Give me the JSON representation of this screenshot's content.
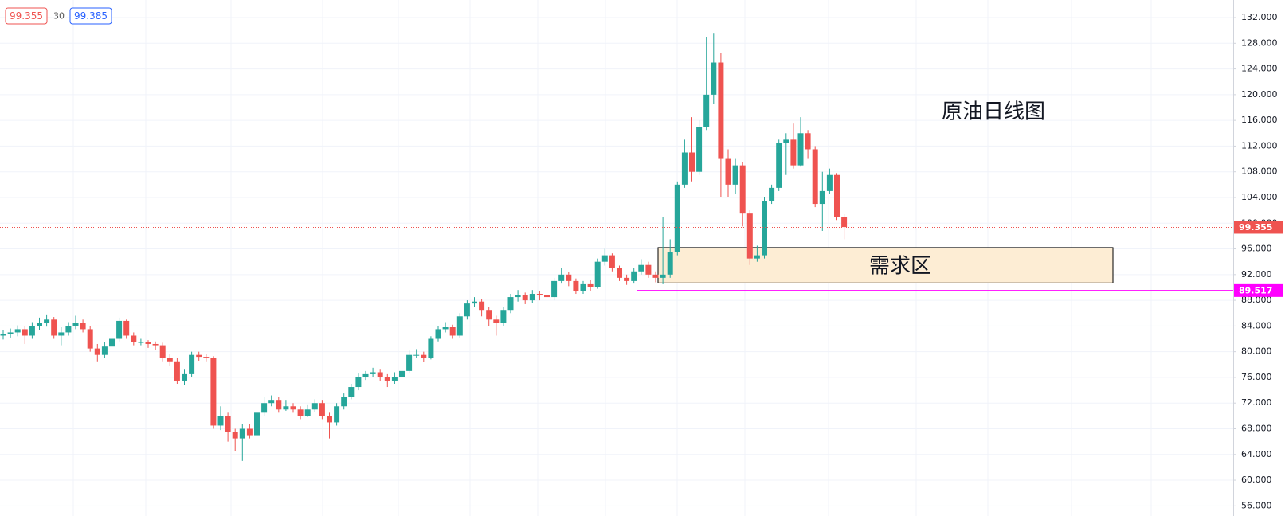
{
  "chart_data": {
    "type": "candlestick",
    "quote": {
      "bid": 99.355,
      "spread": 30,
      "ask": 99.385
    },
    "annotation": "原油日线图",
    "zone": {
      "label": "需求区",
      "range": [
        90.7,
        96.2
      ],
      "fill": "#fdedd4"
    },
    "last_price": {
      "value": 99.355,
      "color": "#ef5350"
    },
    "level": {
      "value": 89.517,
      "color": "#ff00ff"
    },
    "up_color": "#26a69a",
    "down_color": "#ef5350",
    "ylim": [
      54.43,
      134.73
    ],
    "yticks": [
      {
        "value": 56,
        "label": "56.000"
      },
      {
        "value": 60,
        "label": "60.000"
      },
      {
        "value": 64,
        "label": "64.000"
      },
      {
        "value": 68,
        "label": "68.000"
      },
      {
        "value": 72,
        "label": "72.000"
      },
      {
        "value": 76,
        "label": "76.000"
      },
      {
        "value": 80,
        "label": "80.000"
      },
      {
        "value": 84,
        "label": "84.000"
      },
      {
        "value": 88,
        "label": "88.000"
      },
      {
        "value": 92,
        "label": "92.000"
      },
      {
        "value": 96,
        "label": "96.000"
      },
      {
        "value": 100,
        "label": "100.000"
      },
      {
        "value": 104,
        "label": "104.000"
      },
      {
        "value": 108,
        "label": "108.000"
      },
      {
        "value": 112,
        "label": "112.000"
      },
      {
        "value": 116,
        "label": "116.000"
      },
      {
        "value": 120,
        "label": "120.000"
      },
      {
        "value": 124,
        "label": "124.000"
      },
      {
        "value": 128,
        "label": "128.000"
      },
      {
        "value": 132,
        "label": "132.000"
      }
    ],
    "grid": true,
    "series": [
      {
        "open": [
          82.5,
          82.8,
          83,
          83.5,
          82.5,
          84,
          84.5,
          85,
          82.5,
          83,
          84,
          84.5,
          83.5,
          80.5,
          79.5,
          80.8,
          82,
          84.8,
          82.5,
          81.5,
          81.5,
          81.2,
          81,
          79,
          78.5,
          75.5,
          76.5,
          79.5,
          79.2,
          79,
          68.5,
          70,
          67.5,
          66.5,
          68,
          67,
          70.5,
          72,
          72.5,
          71,
          71.5,
          71,
          70,
          71,
          72,
          70,
          69,
          71.5,
          73,
          74.5,
          76,
          76.5,
          76.8,
          76,
          75.5,
          76,
          77,
          79.5,
          79.5,
          79,
          82,
          83.5,
          83.8,
          82.5,
          85.5,
          87.5,
          87.8,
          86.5,
          85,
          84.5,
          86.5,
          88.5,
          88.8,
          88,
          89,
          88.8,
          88.5,
          91,
          92,
          91,
          89.5,
          90.5,
          90,
          94,
          95,
          93,
          91.5,
          91,
          92.5,
          93.5,
          92,
          91.5,
          92,
          95.5,
          106,
          111,
          108,
          115,
          120,
          125,
          110,
          106,
          109,
          101.5,
          94.5,
          95,
          103.5,
          105.5,
          112.5,
          113,
          109,
          114,
          111.5,
          103,
          105,
          107.5,
          101
        ],
        "high": [
          83.3,
          83.6,
          84.1,
          84,
          84.6,
          85.3,
          85.8,
          85.4,
          83.8,
          84.6,
          85.6,
          85,
          84,
          81.2,
          81.5,
          82.6,
          85.3,
          85,
          83,
          82,
          81.8,
          81.6,
          81.4,
          79.6,
          79,
          77.2,
          80,
          80,
          79.6,
          79.3,
          71.5,
          70.5,
          68,
          68.8,
          68.8,
          71,
          73,
          73.2,
          73,
          72.5,
          72,
          71.5,
          71.8,
          72.6,
          72.5,
          70.5,
          72,
          73.5,
          75,
          76.6,
          77,
          77.5,
          77.2,
          76.5,
          76.8,
          77.6,
          80.2,
          80.4,
          80,
          82.4,
          84,
          84.6,
          84.2,
          86,
          88,
          88.5,
          88.2,
          87,
          85.6,
          87,
          89,
          89.6,
          89.2,
          89.6,
          89.4,
          89.2,
          91.5,
          93,
          92.4,
          91.4,
          91,
          91.2,
          94.5,
          96,
          95.3,
          93.4,
          92,
          93,
          94.4,
          94,
          92.5,
          101,
          97.5,
          106.5,
          113,
          116.5,
          116,
          129,
          129.5,
          126.5,
          111.5,
          110,
          109.5,
          102,
          96.5,
          104,
          106,
          113,
          114,
          115.5,
          116.5,
          114.5,
          112,
          108,
          108.5,
          107.8,
          101.4
        ],
        "low": [
          81.9,
          82.2,
          82.4,
          81.2,
          82,
          83.4,
          83.9,
          82,
          81,
          82.5,
          83.5,
          83,
          80,
          78.5,
          79,
          80.3,
          81.6,
          82,
          81,
          81,
          80.6,
          80.3,
          78.5,
          77.8,
          75,
          74.8,
          76,
          78.6,
          78.5,
          68,
          67.8,
          66,
          64.5,
          63,
          66.5,
          66.8,
          70,
          71.5,
          70.5,
          70.8,
          70.5,
          69.5,
          69.8,
          70.6,
          69.5,
          66.5,
          68.5,
          71,
          72.6,
          74,
          75.6,
          76,
          75.5,
          74.5,
          75,
          75.6,
          76.6,
          79,
          78.4,
          78.8,
          81.6,
          83,
          82,
          82.2,
          85,
          87,
          85.5,
          84,
          82.5,
          84,
          86,
          87.8,
          87.4,
          87.6,
          88,
          87.8,
          88,
          90.6,
          90.2,
          89,
          89,
          89.4,
          89.8,
          93.4,
          92.5,
          91,
          90.4,
          90.6,
          92,
          91.5,
          90.8,
          90.5,
          91.5,
          95,
          105.5,
          106.5,
          107.5,
          114.5,
          118.5,
          104,
          104,
          104.5,
          99.5,
          93.5,
          94,
          94.5,
          103,
          105,
          107.5,
          108.5,
          108.8,
          110,
          102.5,
          98.8,
          104.5,
          100.5,
          97.5
        ],
        "close": [
          82.8,
          83,
          83.5,
          82.5,
          84,
          84.5,
          85,
          82.5,
          83,
          84,
          84.5,
          83.5,
          80.5,
          79.5,
          80.8,
          82,
          84.8,
          82.5,
          81.5,
          81.5,
          81.2,
          81,
          79,
          78.5,
          75.5,
          76.5,
          79.5,
          79.2,
          79,
          68.5,
          70,
          67.5,
          66.5,
          68,
          67,
          70.5,
          72,
          72.5,
          71,
          71.5,
          71,
          70,
          71,
          72,
          70,
          69,
          71.5,
          73,
          74.5,
          76,
          76.5,
          76.8,
          76,
          75.5,
          76,
          77,
          79.5,
          79.5,
          79,
          82,
          83.5,
          83.8,
          82.5,
          85.5,
          87.5,
          87.8,
          86.5,
          85,
          84.5,
          86.5,
          88.5,
          88.8,
          88,
          89,
          88.8,
          88.5,
          91,
          92,
          91,
          89.5,
          90.5,
          90,
          94,
          95,
          93,
          91.5,
          91,
          92.5,
          93.5,
          92,
          91.5,
          92,
          95.5,
          106,
          111,
          108,
          115,
          120,
          125,
          110,
          106,
          109,
          101.5,
          94.5,
          95,
          103.5,
          105.5,
          112.5,
          113,
          109,
          114,
          111.5,
          103,
          105,
          107.5,
          101,
          99.4
        ]
      }
    ]
  }
}
